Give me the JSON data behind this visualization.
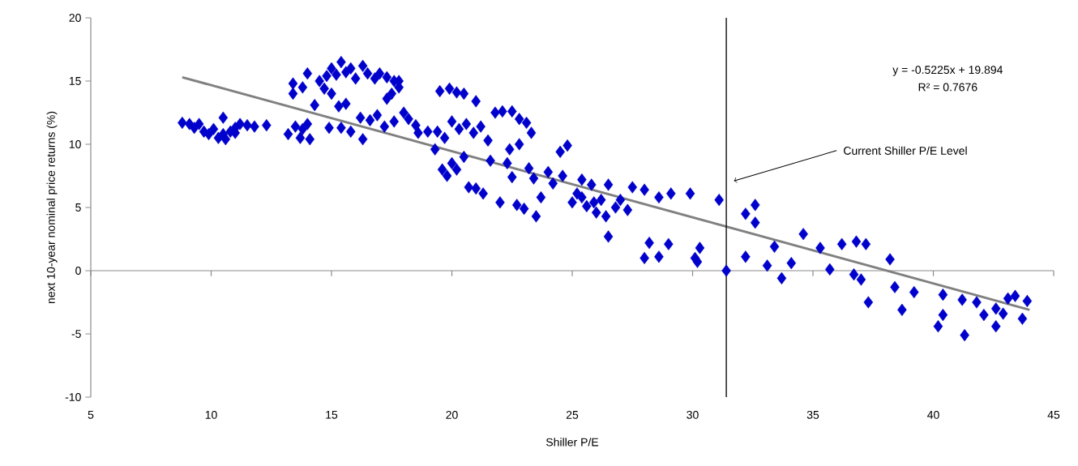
{
  "chart_data": {
    "type": "scatter",
    "xlabel": "Shiller P/E",
    "ylabel": "next 10-year nominal price returns (%)",
    "xlim": [
      5,
      45
    ],
    "xticks": [
      5,
      10,
      15,
      20,
      25,
      30,
      35,
      40,
      45
    ],
    "ylim": [
      -10,
      20
    ],
    "yticks": [
      -10,
      -5,
      0,
      5,
      10,
      15,
      20
    ],
    "annotations": [
      "y = -0.5225x + 19.894",
      "R² = 0.7676"
    ],
    "ref_lines": [
      {
        "axis": "x",
        "value": 31.4,
        "label": "Current Shiller P/E Level",
        "color": "#000000"
      }
    ],
    "series": [
      {
        "color": "#0000cc",
        "marker": "diamond",
        "x": [
          8.8,
          9.1,
          9.3,
          9.5,
          9.7,
          9.9,
          10.1,
          10.3,
          10.5,
          10.6,
          10.8,
          10.5,
          11.0,
          11.2,
          11.5,
          11.0,
          12.3,
          11.8,
          13.2,
          13.5,
          13.7,
          14.0,
          14.1,
          13.8,
          13.4,
          13.4,
          13.8,
          14.0,
          14.3,
          14.5,
          14.7,
          14.8,
          15.0,
          15.2,
          15.4,
          15.6,
          15.8,
          16.0,
          16.3,
          16.5,
          16.8,
          17.0,
          17.3,
          17.6,
          17.8,
          17.5,
          17.8,
          15.0,
          15.3,
          15.6,
          14.9,
          15.4,
          15.8,
          16.2,
          16.3,
          16.6,
          16.9,
          17.2,
          17.6,
          17.3,
          18.0,
          18.2,
          18.5,
          18.6,
          19.0,
          19.5,
          19.9,
          20.2,
          20.5,
          21.0,
          19.4,
          19.7,
          20.0,
          20.3,
          20.6,
          20.9,
          21.2,
          21.5,
          21.8,
          22.1,
          22.5,
          22.8,
          23.1,
          23.3,
          19.3,
          19.6,
          19.8,
          20.0,
          20.2,
          20.5,
          20.7,
          21.0,
          21.3,
          21.6,
          22.0,
          22.3,
          22.5,
          22.7,
          23.0,
          23.2,
          23.5,
          23.7,
          24.0,
          22.4,
          22.8,
          23.4,
          24.2,
          24.5,
          24.8,
          24.6,
          25.0,
          25.2,
          25.4,
          25.6,
          25.8,
          26.0,
          26.2,
          26.4,
          26.5,
          26.5,
          26.8,
          27.0,
          27.3,
          27.5,
          25.4,
          25.9,
          28.0,
          28.6,
          29.1,
          29.9,
          28.2,
          28.0,
          28.6,
          29.0,
          30.1,
          30.3,
          30.2,
          31.1,
          31.4,
          32.2,
          32.6,
          32.6,
          32.2,
          33.1,
          33.4,
          33.7,
          34.1,
          34.6,
          35.3,
          35.7,
          36.2,
          36.8,
          37.2,
          36.7,
          37.0,
          37.3,
          38.2,
          38.4,
          38.7,
          39.2,
          40.4,
          40.4,
          40.2,
          41.3,
          41.2,
          41.8,
          42.1,
          42.6,
          42.6,
          43.1,
          43.4,
          43.9,
          43.7,
          42.9
        ],
        "values": [
          11.7,
          11.6,
          11.3,
          11.6,
          11.0,
          10.8,
          11.2,
          10.5,
          10.8,
          10.4,
          11.0,
          12.1,
          11.3,
          11.6,
          11.5,
          10.9,
          11.5,
          11.4,
          10.8,
          11.4,
          10.5,
          11.6,
          10.4,
          11.2,
          14.8,
          14.0,
          14.5,
          15.6,
          13.1,
          15.0,
          14.4,
          15.4,
          16.0,
          15.5,
          16.5,
          15.7,
          16.0,
          15.2,
          16.2,
          15.6,
          15.2,
          15.6,
          15.3,
          15.0,
          14.5,
          14.0,
          15.0,
          14.0,
          13.0,
          13.2,
          11.3,
          11.3,
          11.0,
          12.1,
          10.4,
          11.9,
          12.3,
          11.4,
          11.8,
          13.6,
          12.5,
          12.0,
          11.5,
          10.9,
          11.0,
          14.2,
          14.4,
          14.1,
          14.0,
          13.4,
          11.0,
          10.5,
          11.8,
          11.2,
          11.6,
          10.9,
          11.4,
          10.3,
          12.5,
          12.6,
          12.6,
          12.0,
          11.7,
          10.9,
          9.6,
          8.0,
          7.5,
          8.5,
          8.0,
          9.0,
          6.6,
          6.5,
          6.1,
          8.7,
          5.4,
          8.5,
          7.4,
          5.2,
          4.9,
          8.1,
          4.3,
          5.8,
          7.8,
          9.6,
          10.0,
          7.3,
          6.9,
          9.4,
          9.9,
          7.5,
          5.4,
          6.1,
          7.2,
          5.1,
          6.8,
          4.6,
          5.6,
          4.3,
          6.8,
          2.7,
          5.0,
          5.6,
          4.8,
          6.6,
          5.8,
          5.4,
          6.4,
          5.8,
          6.1,
          6.1,
          2.2,
          1.0,
          1.1,
          2.1,
          1.0,
          1.8,
          0.7,
          5.6,
          0.0,
          4.5,
          5.2,
          3.8,
          1.1,
          0.4,
          1.9,
          -0.6,
          0.6,
          2.9,
          1.8,
          0.1,
          2.1,
          2.3,
          2.1,
          -0.3,
          -0.7,
          -2.5,
          0.9,
          -1.3,
          -3.1,
          -1.7,
          -1.9,
          -3.5,
          -4.4,
          -5.1,
          -2.3,
          -2.5,
          -3.5,
          -3.0,
          -4.4,
          -2.2,
          -2.0,
          -2.4,
          -3.8,
          -3.4
        ]
      },
      {
        "type": "line",
        "color": "#808080",
        "marker": "none",
        "line_style": "solid",
        "x": [
          8.8,
          44
        ],
        "values": [
          15.3,
          -3.1
        ]
      }
    ]
  }
}
